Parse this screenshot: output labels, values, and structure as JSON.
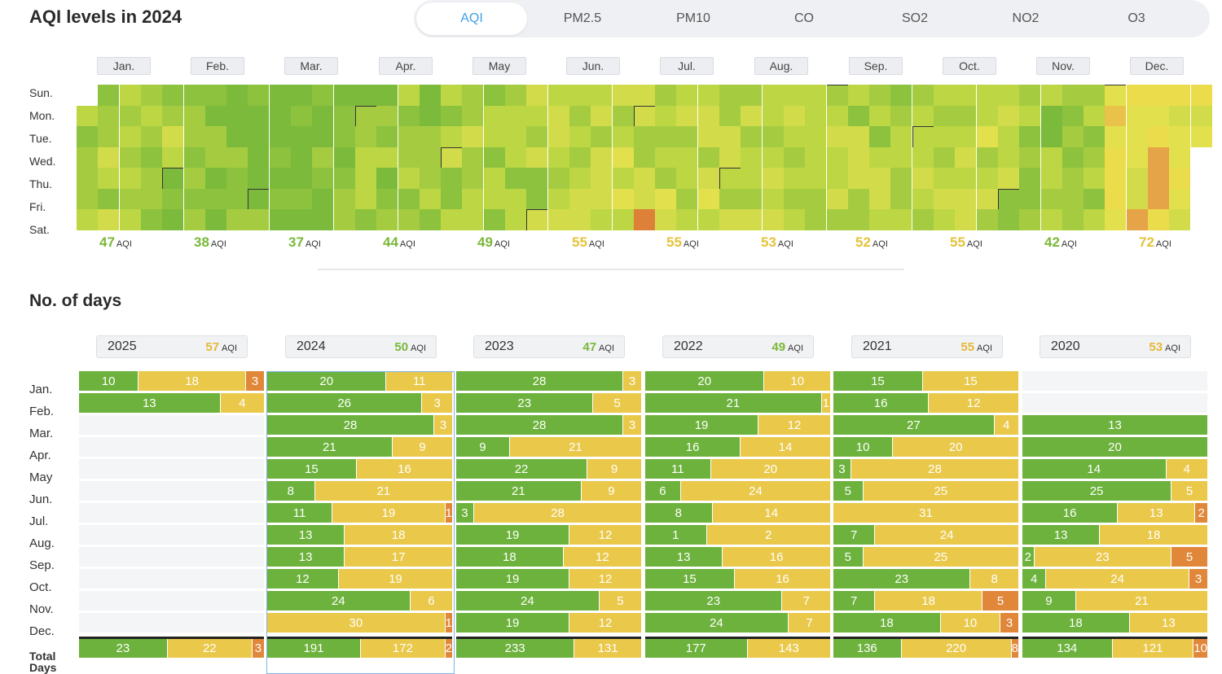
{
  "header": {
    "title": "AQI levels in 2024"
  },
  "tabs": [
    {
      "label": "AQI",
      "active": true
    },
    {
      "label": "PM2.5"
    },
    {
      "label": "PM10"
    },
    {
      "label": "CO"
    },
    {
      "label": "SO2"
    },
    {
      "label": "NO2"
    },
    {
      "label": "O3"
    }
  ],
  "weekdays": [
    "Sun.",
    "Mon.",
    "Tue.",
    "Wed.",
    "Thu.",
    "Fri.",
    "Sat."
  ],
  "heatmap": {
    "year": 2024,
    "unit": "AQI",
    "months": [
      {
        "label": "Jan.",
        "avg": 47,
        "color": "#7ab83a"
      },
      {
        "label": "Feb.",
        "avg": 38,
        "color": "#7ab83a"
      },
      {
        "label": "Mar.",
        "avg": 37,
        "color": "#7ab83a"
      },
      {
        "label": "Apr.",
        "avg": 44,
        "color": "#7ab83a"
      },
      {
        "label": "May",
        "avg": 49,
        "color": "#7ab83a"
      },
      {
        "label": "Jun.",
        "avg": 55,
        "color": "#e5c33a"
      },
      {
        "label": "Jul.",
        "avg": 55,
        "color": "#e5c33a"
      },
      {
        "label": "Aug.",
        "avg": 53,
        "color": "#e5c33a"
      },
      {
        "label": "Sep.",
        "avg": 52,
        "color": "#e5c33a"
      },
      {
        "label": "Oct.",
        "avg": 55,
        "color": "#e5c33a"
      },
      {
        "label": "Nov.",
        "avg": 42,
        "color": "#7ab83a"
      },
      {
        "label": "Dec.",
        "avg": 72,
        "color": "#e5c33a"
      }
    ]
  },
  "days_section": {
    "title": "No. of days",
    "months": [
      "Jan.",
      "Feb.",
      "Mar.",
      "Apr.",
      "May",
      "Jun.",
      "Jul.",
      "Aug.",
      "Sep.",
      "Oct.",
      "Nov.",
      "Dec."
    ],
    "total_label_1": "Total",
    "total_label_2": "Days",
    "unit": "AQI",
    "years": [
      {
        "year": "2025",
        "avg": 57,
        "avg_color": "#e5b83a",
        "rows": [
          [
            10,
            18,
            3
          ],
          [
            13,
            4,
            0
          ],
          null,
          null,
          null,
          null,
          null,
          null,
          null,
          null,
          null,
          null
        ],
        "total": [
          23,
          22,
          3
        ]
      },
      {
        "year": "2024",
        "avg": 50,
        "avg_color": "#7ab83a",
        "rows": [
          [
            20,
            11,
            0
          ],
          [
            26,
            3,
            0
          ],
          [
            28,
            3,
            0
          ],
          [
            21,
            9,
            0
          ],
          [
            15,
            16,
            0
          ],
          [
            8,
            21,
            0
          ],
          [
            11,
            19,
            1
          ],
          [
            13,
            18,
            0
          ],
          [
            13,
            17,
            0
          ],
          [
            12,
            19,
            0
          ],
          [
            24,
            6,
            0
          ],
          [
            0,
            30,
            1
          ]
        ],
        "total": [
          191,
          172,
          2
        ]
      },
      {
        "year": "2023",
        "avg": 47,
        "avg_color": "#7ab83a",
        "rows": [
          [
            28,
            3,
            0
          ],
          [
            23,
            5,
            0
          ],
          [
            28,
            3,
            0
          ],
          [
            9,
            21,
            0
          ],
          [
            22,
            9,
            0
          ],
          [
            21,
            9,
            0
          ],
          [
            3,
            28,
            0
          ],
          [
            19,
            12,
            0
          ],
          [
            18,
            12,
            0
          ],
          [
            19,
            12,
            0
          ],
          [
            24,
            5,
            0
          ],
          [
            19,
            12,
            0
          ]
        ],
        "total": [
          233,
          131,
          0
        ]
      },
      {
        "year": "2022",
        "avg": 49,
        "avg_color": "#7ab83a",
        "rows": [
          [
            20,
            10,
            0
          ],
          [
            21,
            1,
            0
          ],
          [
            19,
            12,
            0
          ],
          [
            16,
            14,
            0
          ],
          [
            11,
            20,
            0
          ],
          [
            6,
            24,
            0
          ],
          [
            8,
            14,
            0
          ],
          [
            1,
            2,
            0
          ],
          [
            13,
            16,
            0
          ],
          [
            15,
            16,
            0
          ],
          [
            23,
            7,
            0
          ],
          [
            24,
            7,
            0
          ]
        ],
        "total": [
          177,
          143,
          0
        ]
      },
      {
        "year": "2021",
        "avg": 55,
        "avg_color": "#e5b83a",
        "rows": [
          [
            15,
            15,
            0
          ],
          [
            16,
            12,
            0
          ],
          [
            27,
            4,
            0
          ],
          [
            10,
            20,
            0
          ],
          [
            3,
            28,
            0
          ],
          [
            5,
            25,
            0
          ],
          [
            0,
            31,
            0
          ],
          [
            7,
            24,
            0
          ],
          [
            5,
            25,
            0
          ],
          [
            23,
            8,
            0
          ],
          [
            7,
            18,
            5
          ],
          [
            18,
            10,
            3
          ]
        ],
        "total": [
          136,
          220,
          8
        ]
      },
      {
        "year": "2020",
        "avg": 53,
        "avg_color": "#e5b83a",
        "rows": [
          null,
          null,
          [
            13,
            0,
            0
          ],
          [
            20,
            0,
            0
          ],
          [
            14,
            4,
            0
          ],
          [
            25,
            5,
            0
          ],
          [
            16,
            13,
            2
          ],
          [
            13,
            18,
            0
          ],
          [
            2,
            23,
            5
          ],
          [
            4,
            24,
            3
          ],
          [
            9,
            21,
            0
          ],
          [
            18,
            13,
            0
          ]
        ],
        "total": [
          134,
          121,
          10
        ]
      }
    ]
  }
}
